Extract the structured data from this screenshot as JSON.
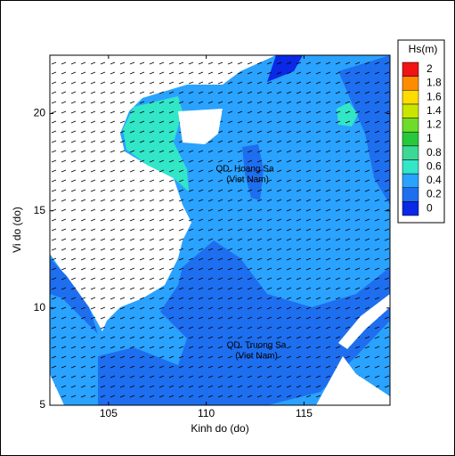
{
  "chart_data": {
    "type": "contour",
    "xlabel": "Kinh do (do)",
    "ylabel": "Vi do (do)",
    "xlim": [
      102,
      119.4
    ],
    "ylim": [
      5,
      23
    ],
    "xticks": [
      105,
      110,
      115
    ],
    "yticks": [
      5,
      10,
      15,
      20
    ],
    "colorbar": {
      "label": "Hs(m)",
      "ticks": [
        0,
        0.2,
        0.4,
        0.6,
        0.8,
        1,
        1.2,
        1.4,
        1.6,
        1.8,
        2
      ],
      "colors": [
        "#0a28e6",
        "#1e6ef0",
        "#2aa2ff",
        "#32e6c8",
        "#3cd896",
        "#28c83c",
        "#6edc28",
        "#c8e600",
        "#ffdc00",
        "#ff8c00",
        "#f01414"
      ]
    },
    "annotations": [
      "QD. Hoang Sa",
      "(Viet Nam)",
      "QD. Truong Sa",
      "(Viet Nam)"
    ]
  }
}
